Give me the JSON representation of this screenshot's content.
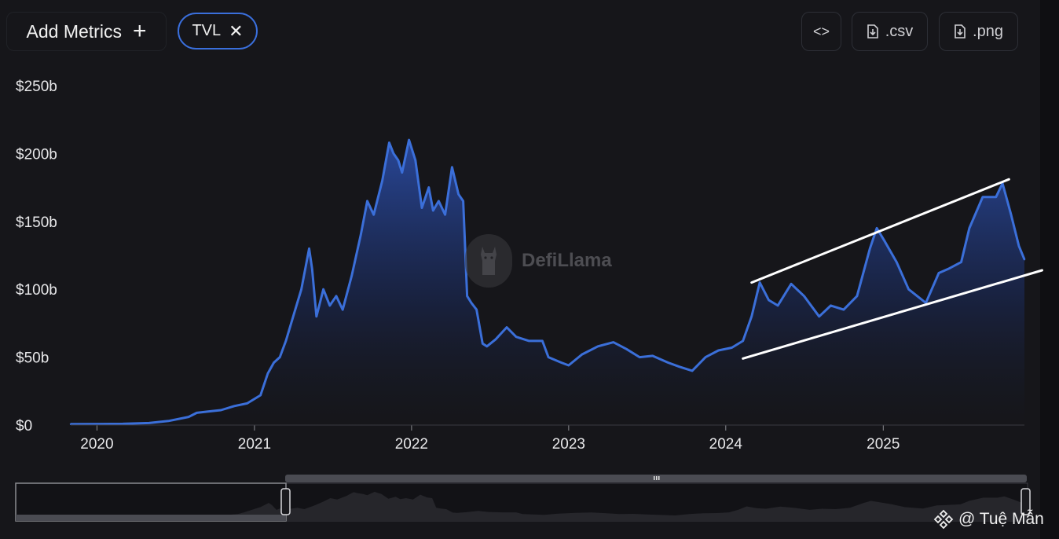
{
  "toolbar": {
    "add_metrics_label": "Add Metrics",
    "add_icon": "plus-icon",
    "metric_chip_label": "TVL",
    "chip_close_icon": "close-icon",
    "embed_icon": "code-icon",
    "csv_label": ".csv",
    "png_label": ".png",
    "download_icon": "file-download-icon"
  },
  "watermark": {
    "text": "DefiLlama"
  },
  "credit": {
    "text": "@ Tuệ Mẫn",
    "icon": "binance-icon"
  },
  "colors": {
    "line": "#3b6fd9",
    "chip_border": "#3a6fdc",
    "background": "#16161a",
    "trend_lines": "#ffffff"
  },
  "chart_data": {
    "type": "area",
    "title": "",
    "xlabel": "",
    "ylabel": "",
    "y_ticks": [
      "$0",
      "$50b",
      "$100b",
      "$150b",
      "$200b",
      "$250b"
    ],
    "ylim": [
      0,
      250
    ],
    "x_ticks": [
      "2020",
      "2021",
      "2022",
      "2023",
      "2024",
      "2025"
    ],
    "xlim": [
      "2019-11-01",
      "2025-11-25"
    ],
    "grid": false,
    "series": [
      {
        "points": [
          [
            "2019-11-01",
            0.7
          ],
          [
            "2020-01-01",
            0.8
          ],
          [
            "2020-03-01",
            0.9
          ],
          [
            "2020-05-01",
            1.5
          ],
          [
            "2020-06-15",
            3
          ],
          [
            "2020-08-01",
            6
          ],
          [
            "2020-08-20",
            9
          ],
          [
            "2020-09-15",
            10
          ],
          [
            "2020-10-15",
            11
          ],
          [
            "2020-11-15",
            14
          ],
          [
            "2020-12-15",
            16
          ],
          [
            "2021-01-15",
            22
          ],
          [
            "2021-02-01",
            38
          ],
          [
            "2021-02-15",
            46
          ],
          [
            "2021-03-01",
            50
          ],
          [
            "2021-03-15",
            62
          ],
          [
            "2021-04-01",
            80
          ],
          [
            "2021-04-20",
            100
          ],
          [
            "2021-05-08",
            130
          ],
          [
            "2021-05-15",
            115
          ],
          [
            "2021-05-25",
            80
          ],
          [
            "2021-06-10",
            100
          ],
          [
            "2021-06-25",
            88
          ],
          [
            "2021-07-10",
            95
          ],
          [
            "2021-07-25",
            85
          ],
          [
            "2021-08-15",
            110
          ],
          [
            "2021-09-05",
            140
          ],
          [
            "2021-09-20",
            165
          ],
          [
            "2021-10-05",
            155
          ],
          [
            "2021-10-25",
            180
          ],
          [
            "2021-11-10",
            208
          ],
          [
            "2021-11-20",
            200
          ],
          [
            "2021-12-01",
            195
          ],
          [
            "2021-12-10",
            186
          ],
          [
            "2021-12-26",
            210
          ],
          [
            "2022-01-10",
            195
          ],
          [
            "2022-01-25",
            160
          ],
          [
            "2022-02-10",
            175
          ],
          [
            "2022-02-20",
            158
          ],
          [
            "2022-03-05",
            165
          ],
          [
            "2022-03-20",
            155
          ],
          [
            "2022-04-05",
            190
          ],
          [
            "2022-04-20",
            170
          ],
          [
            "2022-05-01",
            165
          ],
          [
            "2022-05-10",
            95
          ],
          [
            "2022-05-20",
            90
          ],
          [
            "2022-06-01",
            85
          ],
          [
            "2022-06-15",
            60
          ],
          [
            "2022-06-25",
            58
          ],
          [
            "2022-07-15",
            63
          ],
          [
            "2022-08-10",
            72
          ],
          [
            "2022-09-01",
            65
          ],
          [
            "2022-10-01",
            62
          ],
          [
            "2022-11-01",
            62
          ],
          [
            "2022-11-15",
            50
          ],
          [
            "2022-12-15",
            46
          ],
          [
            "2023-01-01",
            44
          ],
          [
            "2023-02-01",
            52
          ],
          [
            "2023-03-10",
            58
          ],
          [
            "2023-04-15",
            61
          ],
          [
            "2023-05-15",
            56
          ],
          [
            "2023-06-15",
            50
          ],
          [
            "2023-07-15",
            51
          ],
          [
            "2023-08-20",
            46
          ],
          [
            "2023-09-15",
            43
          ],
          [
            "2023-10-15",
            40
          ],
          [
            "2023-11-15",
            50
          ],
          [
            "2023-12-15",
            55
          ],
          [
            "2024-01-15",
            57
          ],
          [
            "2024-02-10",
            62
          ],
          [
            "2024-03-01",
            80
          ],
          [
            "2024-03-20",
            105
          ],
          [
            "2024-04-10",
            92
          ],
          [
            "2024-05-01",
            88
          ],
          [
            "2024-06-01",
            104
          ],
          [
            "2024-07-01",
            95
          ],
          [
            "2024-08-05",
            80
          ],
          [
            "2024-09-01",
            88
          ],
          [
            "2024-10-01",
            85
          ],
          [
            "2024-11-01",
            95
          ],
          [
            "2024-12-01",
            130
          ],
          [
            "2024-12-17",
            145
          ],
          [
            "2025-01-05",
            135
          ],
          [
            "2025-02-01",
            120
          ],
          [
            "2025-03-01",
            100
          ],
          [
            "2025-04-10",
            90
          ],
          [
            "2025-05-10",
            112
          ],
          [
            "2025-06-01",
            115
          ],
          [
            "2025-07-01",
            120
          ],
          [
            "2025-07-20",
            145
          ],
          [
            "2025-08-20",
            168
          ],
          [
            "2025-09-20",
            168
          ],
          [
            "2025-10-05",
            178
          ],
          [
            "2025-10-25",
            155
          ],
          [
            "2025-11-12",
            132
          ],
          [
            "2025-11-25",
            122
          ]
        ]
      }
    ],
    "annotations": [
      {
        "type": "trend-line",
        "from": [
          "2024-03-01",
          105
        ],
        "to": [
          "2025-10-20",
          181
        ]
      },
      {
        "type": "trend-line",
        "from": [
          "2024-02-10",
          49
        ],
        "to": [
          "2026-01-05",
          114
        ]
      }
    ]
  }
}
